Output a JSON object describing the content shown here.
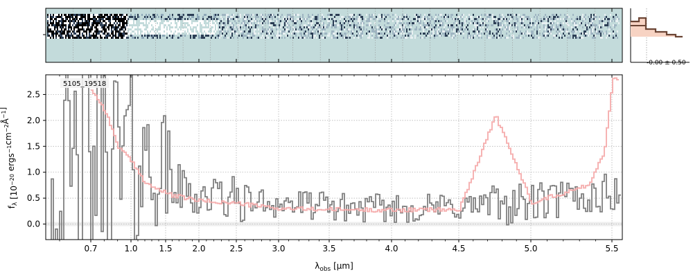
{
  "chart_data": [
    {
      "type": "heatmap",
      "panel": "2d-spectrum",
      "x_tick_labels": [],
      "y_tick_labels": [],
      "colormap_colors": [
        "#c3dbdb",
        "#ffffff",
        "#2c3e55",
        "#000000"
      ],
      "background_color": "#c3dbdb"
    },
    {
      "type": "line",
      "panel": "spatial-profile",
      "annotation": "-0.00 ± 0.50",
      "profile_colors": {
        "fill": "#f7d3c3",
        "line": "#6b4535",
        "accent": "#c0392b"
      }
    },
    {
      "type": "line",
      "panel": "1d-spectrum",
      "title": "",
      "annotation": "5105_19518",
      "xlabel": "λobs [μm]",
      "ylabel": "fλ [10−20 ergs−1cm−2Å−1]",
      "ylim": [
        -0.3,
        2.88
      ],
      "xlim": [
        0.585,
        5.53
      ],
      "x_axis_scale": "non-linear (wavelength pixel grid)",
      "x_tick_values": [
        0.7,
        1.0,
        1.5,
        2.0,
        2.5,
        3.0,
        3.5,
        4.0,
        4.5,
        5.0,
        5.5
      ],
      "x_tick_labels": [
        "0.7",
        "1.0",
        "1.5",
        "2.0",
        "2.5",
        "3.0",
        "3.5",
        "4.0",
        "4.5",
        "5.0",
        "5.5"
      ],
      "y_tick_values": [
        0.0,
        0.5,
        1.0,
        1.5,
        2.0,
        2.5
      ],
      "y_tick_labels": [
        "0.0",
        "0.5",
        "1.0",
        "1.5",
        "2.0",
        "2.5"
      ],
      "grid": true,
      "series": [
        {
          "role": "observed",
          "color": "#808080",
          "x": [
            0.6,
            0.7,
            0.8,
            0.9,
            1.0,
            1.2,
            1.4,
            1.6,
            1.8,
            2.0,
            2.3,
            2.6,
            3.0,
            3.4,
            3.8,
            4.2,
            4.6,
            5.0,
            5.3,
            5.5
          ],
          "y": [
            0.5,
            1.2,
            1.6,
            1.0,
            1.3,
            1.2,
            1.1,
            0.8,
            0.6,
            0.55,
            0.5,
            0.45,
            0.4,
            0.35,
            0.3,
            0.3,
            0.35,
            0.4,
            0.5,
            0.6
          ]
        },
        {
          "role": "model",
          "color": "#f4a6a6",
          "x": [
            0.7,
            0.8,
            0.9,
            1.0,
            1.2,
            1.4,
            1.6,
            1.8,
            2.0,
            2.5,
            3.0,
            3.5,
            4.0,
            4.5,
            4.75,
            5.0,
            5.2,
            5.35,
            5.45,
            5.5
          ],
          "y": [
            2.6,
            2.2,
            1.5,
            1.2,
            0.8,
            0.65,
            0.55,
            0.5,
            0.45,
            0.4,
            0.3,
            0.28,
            0.27,
            0.28,
            2.1,
            0.42,
            0.6,
            0.75,
            1.4,
            2.8
          ]
        }
      ]
    }
  ]
}
